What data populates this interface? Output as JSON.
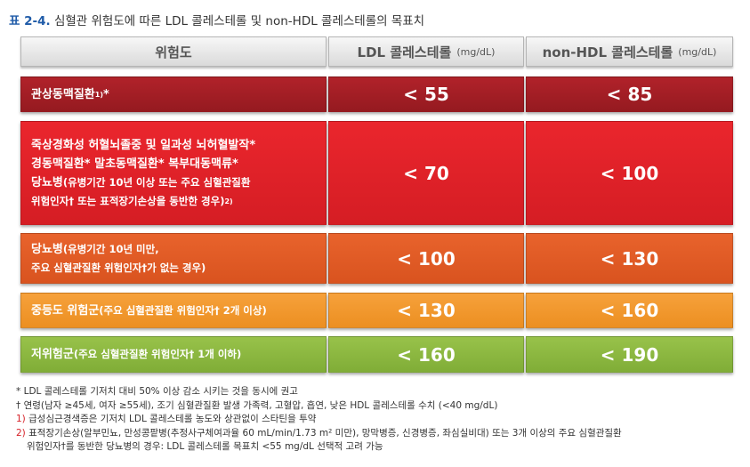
{
  "title": {
    "label": "표 2-4.",
    "text": "심혈관 위험도에 따른 LDL 콜레스테롤 및 non-HDL 콜레스테롤의 목표치"
  },
  "header": {
    "risk": "위험도",
    "ldl": "LDL 콜레스테롤",
    "ldl_unit": "(mg/dL)",
    "nonhdl": "non-HDL 콜레스테롤",
    "nonhdl_unit": "(mg/dL)"
  },
  "rows": [
    {
      "lines": [
        {
          "main": "관상동맥질환",
          "sup": "1)",
          "tail": "*"
        }
      ],
      "ldl": "< 55",
      "nonhdl": "< 85",
      "color": "#a51e25"
    },
    {
      "lines": [
        {
          "main": "죽상경화성 허혈뇌졸중 및 일과성 뇌허혈발작*"
        },
        {
          "main": "경동맥질환*  말초동맥질환*  복부대동맥류*"
        },
        {
          "main": "당뇨병",
          "small": "(유병기간 10년 이상 또는 주요 심혈관질환"
        },
        {
          "small": "위험인자† 또는 표적장기손상을 동반한 경우)",
          "sup": "2)"
        }
      ],
      "ldl": "< 70",
      "nonhdl": "< 100",
      "color": "#e0232a"
    },
    {
      "lines": [
        {
          "main": "당뇨병",
          "small": "(유병기간 10년 미만,"
        },
        {
          "small": "주요 심혈관질환 위험인자†가 없는 경우)"
        }
      ],
      "ldl": "< 100",
      "nonhdl": "< 130",
      "color": "#e05b25"
    },
    {
      "lines": [
        {
          "main": "중등도 위험군",
          "small": "(주요 심혈관질환 위험인자† 2개 이상)"
        }
      ],
      "ldl": "< 130",
      "nonhdl": "< 160",
      "color": "#f19a2e"
    },
    {
      "lines": [
        {
          "main": "저위험군",
          "small": "(주요 심혈관질환 위험인자† 1개 이하)"
        }
      ],
      "ldl": "< 160",
      "nonhdl": "< 190",
      "color": "#8cb841"
    }
  ],
  "notes": {
    "n1": "* LDL 콜레스테롤 기저치 대비 50% 이상 감소 시키는 것을 동시에 권고",
    "n2": "† 연령(남자 ≥45세, 여자 ≥55세), 조기 심혈관질환 발생 가족력, 고혈압, 흡연, 낮은 HDL 콜레스테롤 수치 (<40 mg/dL)",
    "n3_mark": "1)",
    "n3": "급성심근경색증은 기저치 LDL 콜레스테롤 농도와 상관없이 스타틴을 투약",
    "n4_mark": "2)",
    "n4": "표적장기손상(알부민뇨, 만성콩팥병(추정사구체여과율 60 mL/min/1.73 m² 미만), 망막병증, 신경병증, 좌심실비대) 또는 3개 이상의 주요 심혈관질환",
    "n5": "위험인자†를 동반한 당뇨병의 경우: LDL 콜레스테롤 목표치 <55 mg/dL 선택적 고려 가능"
  }
}
